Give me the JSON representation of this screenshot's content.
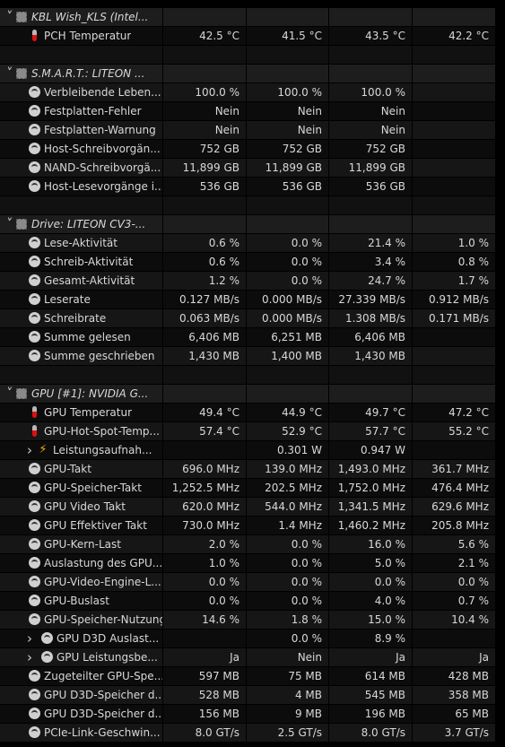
{
  "rows": [
    {
      "kind": "group",
      "icon": "chip-icon",
      "chevron": "down",
      "label": "KBL Wish_KLS (Intel...",
      "v": [
        "",
        "",
        "",
        ""
      ]
    },
    {
      "kind": "item",
      "icon": "thermometer-icon",
      "indent": 1,
      "label": "PCH Temperatur",
      "v": [
        "42.5 °C",
        "41.5 °C",
        "43.5 °C",
        "42.2 °C"
      ]
    },
    {
      "kind": "blank",
      "v": [
        "",
        "",
        "",
        ""
      ]
    },
    {
      "kind": "group",
      "icon": "chip-icon",
      "chevron": "down",
      "label": "S.M.A.R.T.: LITEON ...",
      "v": [
        "",
        "",
        "",
        ""
      ]
    },
    {
      "kind": "item",
      "icon": "gauge-icon",
      "indent": 1,
      "label": "Verbleibende Leben...",
      "v": [
        "100.0 %",
        "100.0 %",
        "100.0 %",
        ""
      ]
    },
    {
      "kind": "item",
      "icon": "gauge-icon",
      "indent": 1,
      "label": "Festplatten-Fehler",
      "v": [
        "Nein",
        "Nein",
        "Nein",
        ""
      ]
    },
    {
      "kind": "item",
      "icon": "gauge-icon",
      "indent": 1,
      "label": "Festplatten-Warnung",
      "v": [
        "Nein",
        "Nein",
        "Nein",
        ""
      ]
    },
    {
      "kind": "item",
      "icon": "gauge-icon",
      "indent": 1,
      "label": "Host-Schreibvorgän...",
      "v": [
        "752 GB",
        "752 GB",
        "752 GB",
        ""
      ]
    },
    {
      "kind": "item",
      "icon": "gauge-icon",
      "indent": 1,
      "label": "NAND-Schreibvorgä...",
      "v": [
        "11,899 GB",
        "11,899 GB",
        "11,899 GB",
        ""
      ]
    },
    {
      "kind": "item",
      "icon": "gauge-icon",
      "indent": 1,
      "label": "Host-Lesevorgänge i...",
      "v": [
        "536 GB",
        "536 GB",
        "536 GB",
        ""
      ]
    },
    {
      "kind": "blank",
      "v": [
        "",
        "",
        "",
        ""
      ]
    },
    {
      "kind": "group",
      "icon": "chip-icon",
      "chevron": "down",
      "label": "Drive: LITEON CV3-...",
      "v": [
        "",
        "",
        "",
        ""
      ]
    },
    {
      "kind": "item",
      "icon": "gauge-icon",
      "indent": 1,
      "label": "Lese-Aktivität",
      "v": [
        "0.6 %",
        "0.0 %",
        "21.4 %",
        "1.0 %"
      ]
    },
    {
      "kind": "item",
      "icon": "gauge-icon",
      "indent": 1,
      "label": "Schreib-Aktivität",
      "v": [
        "0.6 %",
        "0.0 %",
        "3.4 %",
        "0.8 %"
      ]
    },
    {
      "kind": "item",
      "icon": "gauge-icon",
      "indent": 1,
      "label": "Gesamt-Aktivität",
      "v": [
        "1.2 %",
        "0.0 %",
        "24.7 %",
        "1.7 %"
      ]
    },
    {
      "kind": "item",
      "icon": "gauge-icon",
      "indent": 1,
      "label": "Leserate",
      "v": [
        "0.127 MB/s",
        "0.000 MB/s",
        "27.339 MB/s",
        "0.912 MB/s"
      ]
    },
    {
      "kind": "item",
      "icon": "gauge-icon",
      "indent": 1,
      "label": "Schreibrate",
      "v": [
        "0.063 MB/s",
        "0.000 MB/s",
        "1.308 MB/s",
        "0.171 MB/s"
      ]
    },
    {
      "kind": "item",
      "icon": "gauge-icon",
      "indent": 1,
      "label": "Summe gelesen",
      "v": [
        "6,406 MB",
        "6,251 MB",
        "6,406 MB",
        ""
      ]
    },
    {
      "kind": "item",
      "icon": "gauge-icon",
      "indent": 1,
      "label": "Summe geschrieben",
      "v": [
        "1,430 MB",
        "1,400 MB",
        "1,430 MB",
        ""
      ]
    },
    {
      "kind": "blank",
      "v": [
        "",
        "",
        "",
        ""
      ]
    },
    {
      "kind": "group",
      "icon": "chip-icon",
      "chevron": "down",
      "label": "GPU [#1]: NVIDIA G...",
      "v": [
        "",
        "",
        "",
        ""
      ]
    },
    {
      "kind": "item",
      "icon": "thermometer-icon",
      "indent": 1,
      "label": "GPU Temperatur",
      "v": [
        "49.4 °C",
        "44.9 °C",
        "49.7 °C",
        "47.2 °C"
      ]
    },
    {
      "kind": "item",
      "icon": "thermometer-icon",
      "indent": 1,
      "label": "GPU-Hot-Spot-Temp...",
      "v": [
        "57.4 °C",
        "52.9 °C",
        "57.7 °C",
        "55.2 °C"
      ]
    },
    {
      "kind": "item",
      "icon": "lightning-icon",
      "indent": 1,
      "chevron": "right",
      "label": "Leistungsaufnah...",
      "v": [
        "",
        "0.301 W",
        "0.947 W",
        ""
      ]
    },
    {
      "kind": "item",
      "icon": "gauge-icon",
      "indent": 1,
      "label": "GPU-Takt",
      "v": [
        "696.0 MHz",
        "139.0 MHz",
        "1,493.0 MHz",
        "361.7 MHz"
      ]
    },
    {
      "kind": "item",
      "icon": "gauge-icon",
      "indent": 1,
      "label": "GPU-Speicher-Takt",
      "v": [
        "1,252.5 MHz",
        "202.5 MHz",
        "1,752.0 MHz",
        "476.4 MHz"
      ]
    },
    {
      "kind": "item",
      "icon": "gauge-icon",
      "indent": 1,
      "label": "GPU Video Takt",
      "v": [
        "620.0 MHz",
        "544.0 MHz",
        "1,341.5 MHz",
        "629.6 MHz"
      ]
    },
    {
      "kind": "item",
      "icon": "gauge-icon",
      "indent": 1,
      "label": "GPU Effektiver Takt",
      "v": [
        "730.0 MHz",
        "1.4 MHz",
        "1,460.2 MHz",
        "205.8 MHz"
      ]
    },
    {
      "kind": "item",
      "icon": "gauge-icon",
      "indent": 1,
      "label": "GPU-Kern-Last",
      "v": [
        "2.0 %",
        "0.0 %",
        "16.0 %",
        "5.6 %"
      ]
    },
    {
      "kind": "item",
      "icon": "gauge-icon",
      "indent": 1,
      "label": "Auslastung des GPU...",
      "v": [
        "1.0 %",
        "0.0 %",
        "5.0 %",
        "2.1 %"
      ]
    },
    {
      "kind": "item",
      "icon": "gauge-icon",
      "indent": 1,
      "label": "GPU-Video-Engine-L...",
      "v": [
        "0.0 %",
        "0.0 %",
        "0.0 %",
        "0.0 %"
      ]
    },
    {
      "kind": "item",
      "icon": "gauge-icon",
      "indent": 1,
      "label": "GPU-Buslast",
      "v": [
        "0.0 %",
        "0.0 %",
        "4.0 %",
        "0.7 %"
      ]
    },
    {
      "kind": "item",
      "icon": "gauge-icon",
      "indent": 1,
      "label": "GPU-Speicher-Nutzung",
      "v": [
        "14.6 %",
        "1.8 %",
        "15.0 %",
        "10.4 %"
      ]
    },
    {
      "kind": "item",
      "icon": "gauge-icon",
      "indent": 2,
      "chevron": "right",
      "label": "GPU D3D Auslast...",
      "v": [
        "",
        "0.0 %",
        "8.9 %",
        ""
      ]
    },
    {
      "kind": "item",
      "icon": "gauge-icon",
      "indent": 2,
      "chevron": "right",
      "label": "GPU Leistungsbe...",
      "v": [
        "Ja",
        "Nein",
        "Ja",
        "Ja"
      ]
    },
    {
      "kind": "item",
      "icon": "gauge-icon",
      "indent": 1,
      "label": "Zugeteilter GPU-Spe...",
      "v": [
        "597 MB",
        "75 MB",
        "614 MB",
        "428 MB"
      ]
    },
    {
      "kind": "item",
      "icon": "gauge-icon",
      "indent": 1,
      "label": "GPU D3D-Speicher d...",
      "v": [
        "528 MB",
        "4 MB",
        "545 MB",
        "358 MB"
      ]
    },
    {
      "kind": "item",
      "icon": "gauge-icon",
      "indent": 1,
      "label": "GPU D3D-Speicher d...",
      "v": [
        "156 MB",
        "9 MB",
        "196 MB",
        "65 MB"
      ]
    },
    {
      "kind": "item",
      "icon": "gauge-icon",
      "indent": 1,
      "label": "PCIe-Link-Geschwin...",
      "v": [
        "8.0 GT/s",
        "2.5 GT/s",
        "8.0 GT/s",
        "3.7 GT/s"
      ]
    }
  ]
}
